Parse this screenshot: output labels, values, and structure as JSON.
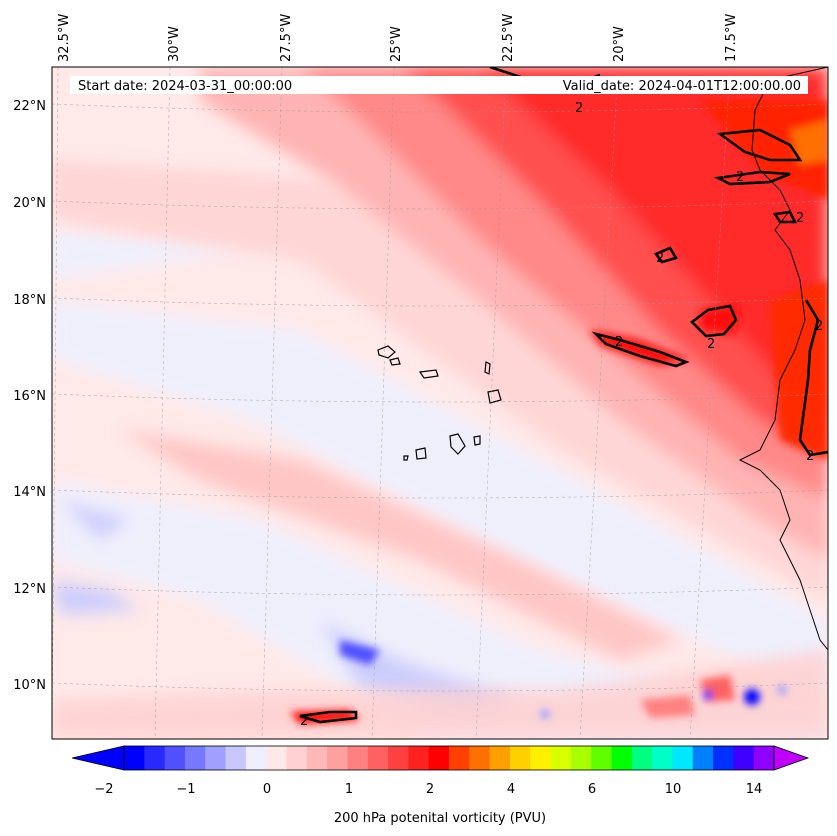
{
  "header": {
    "start_date": "Start date: 2024-03-31_00:00:00",
    "valid_date": "Valid_date: 2024-04-01T12:00:00.00"
  },
  "lon_labels": [
    "32.5°W",
    "30°W",
    "27.5°W",
    "25°W",
    "22.5°W",
    "20°W",
    "17.5°W"
  ],
  "lat_labels": [
    "22°N",
    "20°N",
    "18°N",
    "16°N",
    "14°N",
    "12°N",
    "10°N"
  ],
  "contour_label": "2",
  "colorbar": {
    "label": "200 hPa potenital vorticity (PVU)",
    "tick_labels": [
      "−2",
      "−1",
      "0",
      "1",
      "2",
      "4",
      "6",
      "10",
      "14"
    ],
    "colors": [
      "#0000ff",
      "#2828ff",
      "#5050ff",
      "#7878ff",
      "#a0a0ff",
      "#c8c8ff",
      "#eeeeff",
      "#ffe8e8",
      "#ffd0d0",
      "#ffb8b8",
      "#ffa0a0",
      "#ff8080",
      "#ff6060",
      "#ff4040",
      "#ff2020",
      "#ff0000",
      "#ff4000",
      "#ff7000",
      "#ffa000",
      "#ffd000",
      "#fff000",
      "#d8ff00",
      "#a8ff00",
      "#60ff00",
      "#00ff00",
      "#00ff80",
      "#00ffc8",
      "#00e8ff",
      "#0080ff",
      "#0030ff",
      "#4000ff",
      "#9000ff"
    ],
    "extend_low": "#0000ff",
    "extend_high": "#c000ff"
  }
}
